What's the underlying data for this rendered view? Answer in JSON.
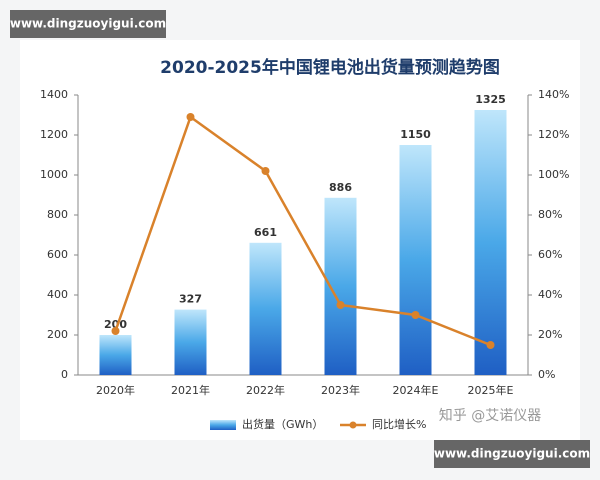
{
  "chart_data": {
    "type": "bar",
    "title": "2020-2025年中国锂电池出货量预测趋势图",
    "categories": [
      "2020年",
      "2021年",
      "2022年",
      "2023年",
      "2024年E",
      "2025年E"
    ],
    "series": [
      {
        "name": "出货量（GWh）",
        "type": "bar",
        "color": "#2f7fd6",
        "values": [
          200,
          327,
          661,
          886,
          1150,
          1325
        ]
      },
      {
        "name": "同比增长%",
        "type": "line",
        "axis": "y2",
        "color": "#d9822b",
        "values": [
          22,
          129,
          102,
          35,
          30,
          15
        ]
      }
    ],
    "ylim": [
      0,
      1400
    ],
    "yticks": [
      0,
      200,
      400,
      600,
      800,
      1000,
      1200,
      1400
    ],
    "y2lim": [
      0,
      140
    ],
    "y2ticks": [
      {
        "value": 0,
        "label": "0%"
      },
      {
        "value": 20,
        "label": "20%"
      },
      {
        "value": 40,
        "label": "40%"
      },
      {
        "value": 60,
        "label": "60%"
      },
      {
        "value": 80,
        "label": "80%"
      },
      {
        "value": 100,
        "label": "100%"
      },
      {
        "value": 120,
        "label": "120%"
      },
      {
        "value": 140,
        "label": "140%"
      }
    ],
    "legend": "bottom"
  },
  "watermarks": [
    "www.dingzuoyigui.com",
    "知乎 @艾诺仪器",
    "www.dingzuoyigui.com"
  ]
}
